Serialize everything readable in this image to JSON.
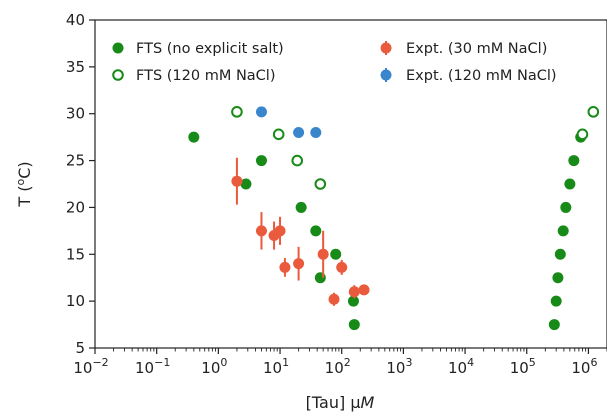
{
  "chart_data": {
    "type": "scatter",
    "xscale": "log",
    "xlim": [
      0.01,
      2000000
    ],
    "ylim": [
      5,
      40
    ],
    "xlabel_prefix": "[Tau] ",
    "xlabel_mu": "μ",
    "xlabel_unit": "M",
    "ylabel": "T (",
    "ylabel_sup": "o",
    "ylabel_end": "C)",
    "xticks": [
      {
        "value": 0.01,
        "base": "10",
        "exp": "−2"
      },
      {
        "value": 0.1,
        "base": "10",
        "exp": "−1"
      },
      {
        "value": 1,
        "base": "10",
        "exp": "0"
      },
      {
        "value": 10,
        "base": "10",
        "exp": "1"
      },
      {
        "value": 100,
        "base": "10",
        "exp": "2"
      },
      {
        "value": 1000,
        "base": "10",
        "exp": "3"
      },
      {
        "value": 10000,
        "base": "10",
        "exp": "4"
      },
      {
        "value": 100000,
        "base": "10",
        "exp": "5"
      },
      {
        "value": 1000000,
        "base": "10",
        "exp": "6"
      }
    ],
    "yticks": [
      5,
      10,
      15,
      20,
      25,
      30,
      35,
      40
    ],
    "legend_placement": "top",
    "series": [
      {
        "name": "FTS (no explicit salt)",
        "marker": "filled-circle",
        "color": "#178a17",
        "points": [
          {
            "x": 0.4,
            "y": 27.5
          },
          {
            "x": 2.8,
            "y": 22.5
          },
          {
            "x": 5,
            "y": 25
          },
          {
            "x": 22,
            "y": 20
          },
          {
            "x": 38,
            "y": 17.5
          },
          {
            "x": 45,
            "y": 12.5
          },
          {
            "x": 80,
            "y": 15
          },
          {
            "x": 155,
            "y": 10
          },
          {
            "x": 160,
            "y": 7.5
          },
          {
            "x": 280000,
            "y": 7.5
          },
          {
            "x": 300000,
            "y": 10
          },
          {
            "x": 320000,
            "y": 12.5
          },
          {
            "x": 350000,
            "y": 15
          },
          {
            "x": 390000,
            "y": 17.5
          },
          {
            "x": 430000,
            "y": 20
          },
          {
            "x": 500000,
            "y": 22.5
          },
          {
            "x": 580000,
            "y": 25
          },
          {
            "x": 750000,
            "y": 27.5
          }
        ]
      },
      {
        "name": "FTS (120 mM NaCl)",
        "marker": "open-circle",
        "color": "#178a17",
        "points": [
          {
            "x": 2,
            "y": 30.2
          },
          {
            "x": 9.5,
            "y": 27.8
          },
          {
            "x": 19,
            "y": 25
          },
          {
            "x": 45,
            "y": 22.5
          },
          {
            "x": 800000,
            "y": 27.8
          },
          {
            "x": 1200000,
            "y": 30.2
          }
        ]
      },
      {
        "name": "Expt. (30 mM NaCl)",
        "marker": "filled-circle-errorbar",
        "color": "#ea5a3c",
        "points": [
          {
            "x": 2,
            "y": 22.8,
            "yerr": 2.5
          },
          {
            "x": 5,
            "y": 17.5,
            "yerr": 2.0
          },
          {
            "x": 8,
            "y": 17,
            "yerr": 1.5
          },
          {
            "x": 10,
            "y": 17.5,
            "yerr": 1.5
          },
          {
            "x": 12,
            "y": 13.6,
            "yerr": 1.0
          },
          {
            "x": 20,
            "y": 14,
            "yerr": 1.8
          },
          {
            "x": 50,
            "y": 15,
            "yerr": 2.5
          },
          {
            "x": 75,
            "y": 10.2,
            "yerr": 0.7
          },
          {
            "x": 100,
            "y": 13.6,
            "yerr": 0.8
          },
          {
            "x": 160,
            "y": 11,
            "yerr": 0.7
          },
          {
            "x": 230,
            "y": 11.2,
            "yerr": 0.5
          }
        ]
      },
      {
        "name": "Expt. (120 mM NaCl)",
        "marker": "filled-circle-errorbar",
        "color": "#3a86cc",
        "points": [
          {
            "x": 5,
            "y": 30.2,
            "yerr": 0.5
          },
          {
            "x": 20,
            "y": 28,
            "yerr": 0.5
          },
          {
            "x": 38,
            "y": 28,
            "yerr": 0.5
          }
        ]
      }
    ]
  }
}
